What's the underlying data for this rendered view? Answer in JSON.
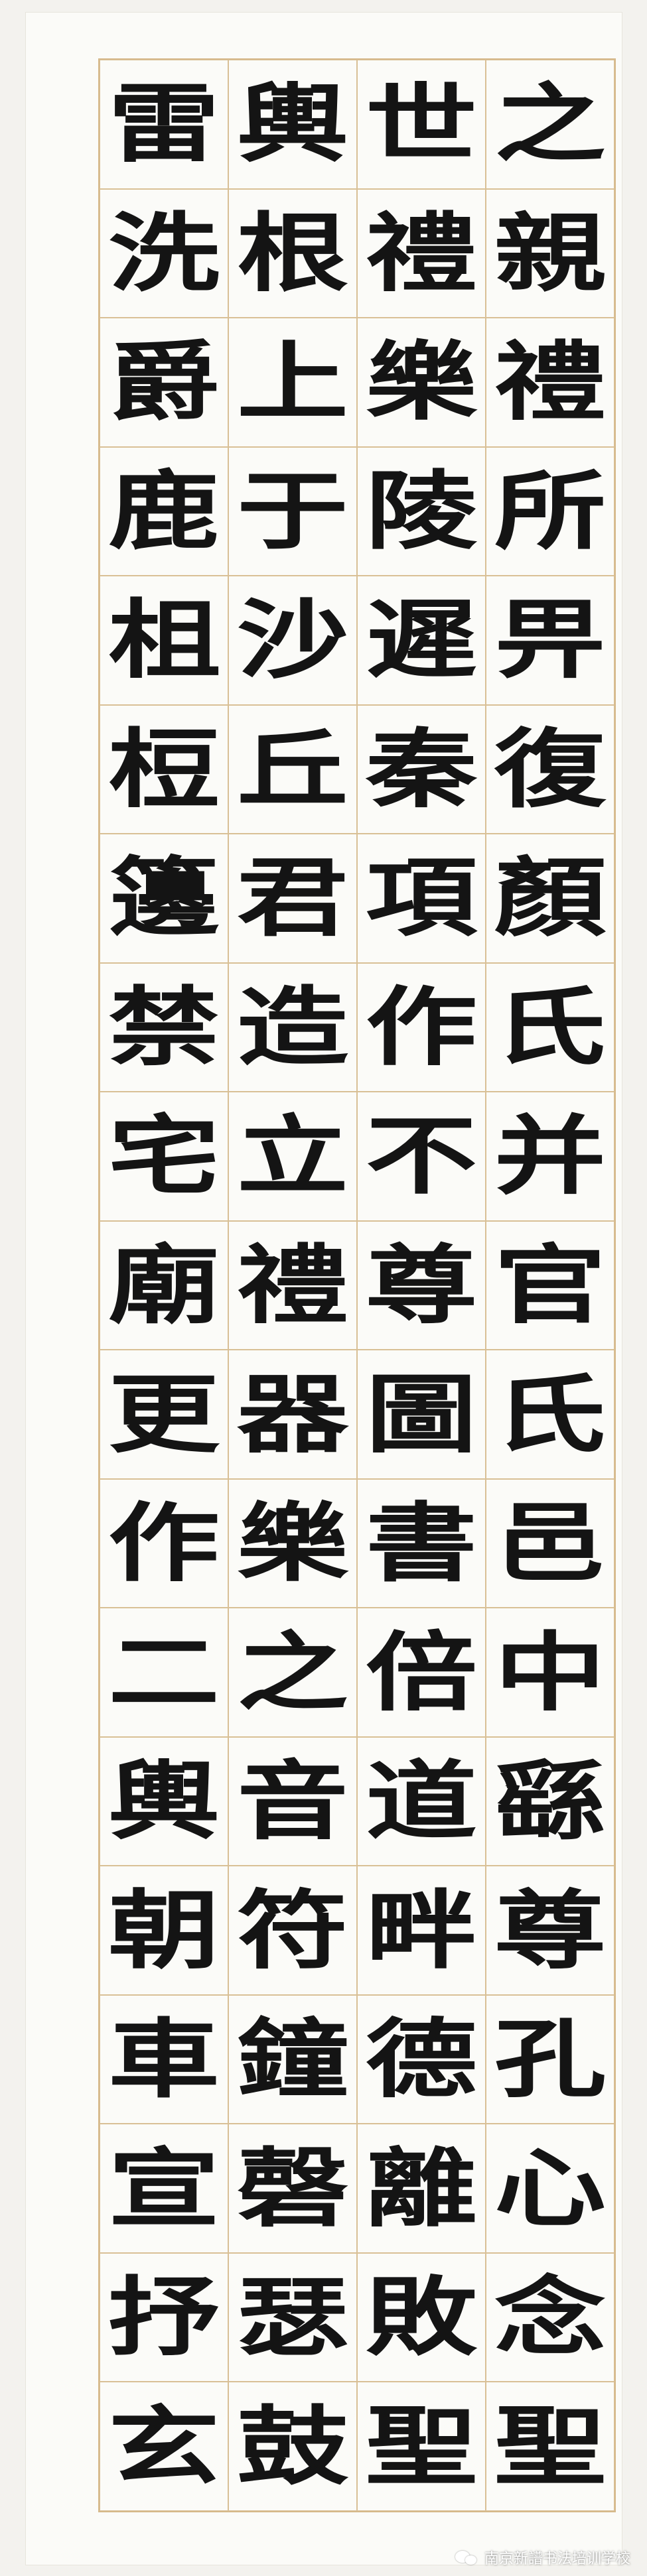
{
  "calligraphy": {
    "columns": [
      [
        "之",
        "親",
        "禮",
        "所",
        "畀",
        "復",
        "顏",
        "氏",
        "并",
        "官",
        "氏",
        "邑",
        "中",
        "繇",
        "尊",
        "孔",
        "心",
        "念",
        "聖"
      ],
      [
        "世",
        "禮",
        "樂",
        "陵",
        "遲",
        "秦",
        "項",
        "作",
        "不",
        "尊",
        "圖",
        "書",
        "倍",
        "道",
        "畔",
        "德",
        "離",
        "敗",
        "聖"
      ],
      [
        "輿",
        "根",
        "上",
        "于",
        "沙",
        "丘",
        "君",
        "造",
        "立",
        "禮",
        "器",
        "樂",
        "之",
        "音",
        "符",
        "鐘",
        "磬",
        "瑟",
        "鼓"
      ],
      [
        "雷",
        "洗",
        "爵",
        "鹿",
        "柤",
        "梪",
        "籩",
        "禁",
        "宅",
        "廟",
        "更",
        "作",
        "二",
        "輿",
        "朝",
        "車",
        "宣",
        "抒",
        "玄"
      ]
    ]
  },
  "watermark": {
    "text": "南京新譜书法培训学校",
    "icon": "wechat-icon"
  }
}
